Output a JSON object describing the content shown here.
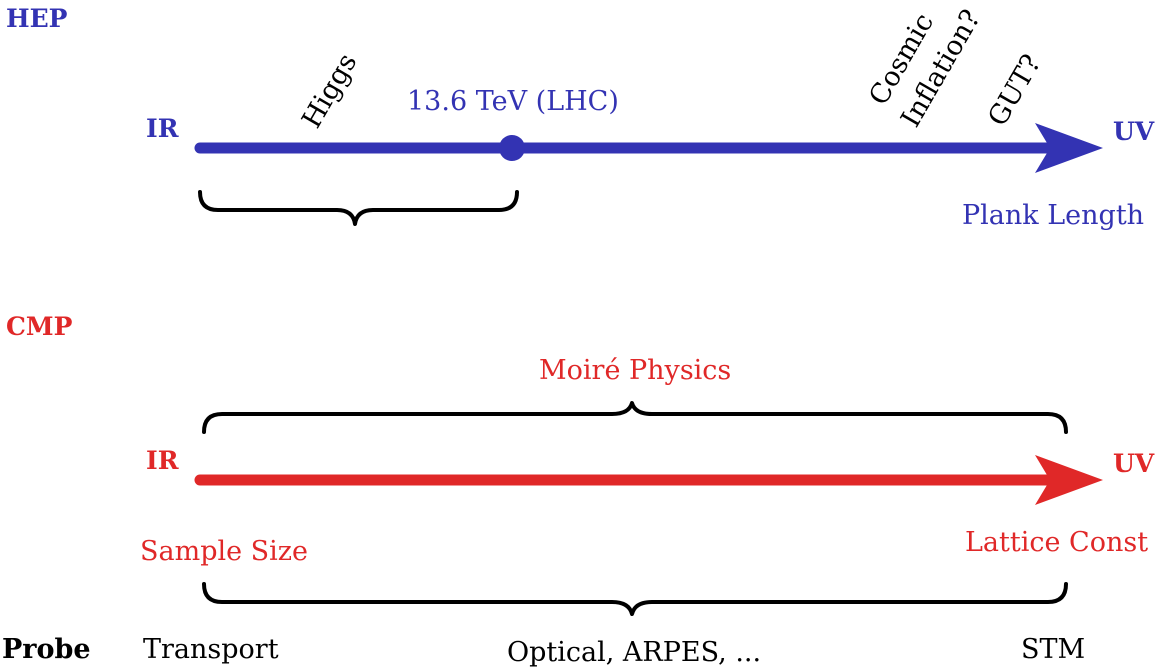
{
  "colors": {
    "hep": "#3333b3",
    "cmp": "#e02828",
    "brace": "#000000",
    "text": "#000000"
  },
  "hep": {
    "section_label": "HEP",
    "ir_label": "IR",
    "uv_label": "UV",
    "marker_label": "13.6 TeV (LHC)",
    "uv_scale_label": "Plank Length",
    "rotated_labels": {
      "higgs": "Higgs",
      "cosmic": "Cosmic",
      "inflation": "Inflation?",
      "gut": "GUT?"
    }
  },
  "cmp": {
    "section_label": "CMP",
    "ir_label": "IR",
    "uv_label": "UV",
    "span_label": "Moiré Physics",
    "ir_scale_label": "Sample Size",
    "uv_scale_label": "Lattice Const"
  },
  "probe": {
    "row_label": "Probe",
    "items": [
      "Transport",
      "Optical, ARPES, ...",
      "STM"
    ]
  }
}
